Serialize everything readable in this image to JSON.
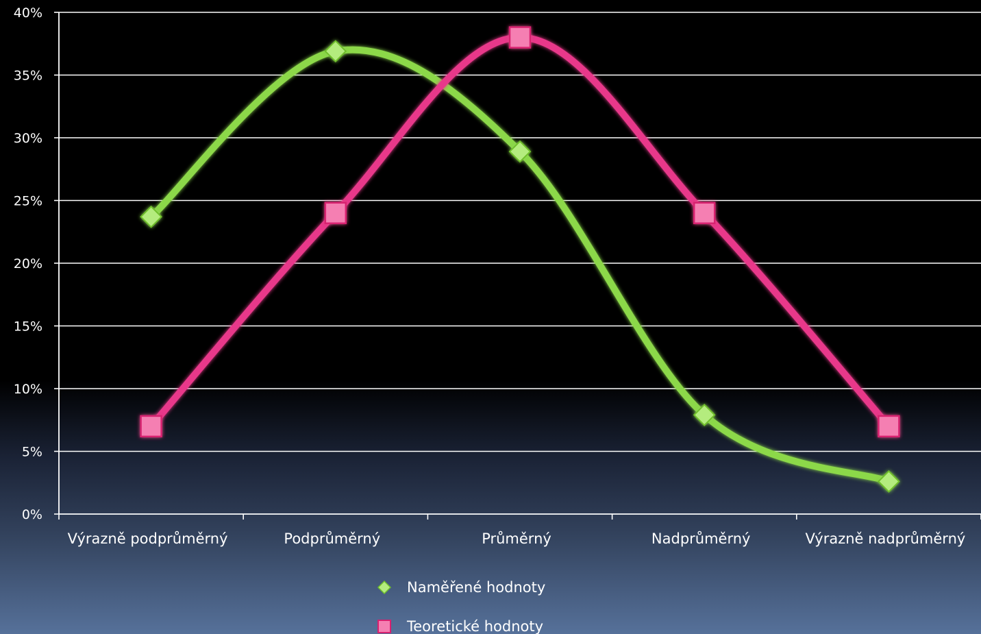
{
  "chart_data": {
    "type": "line",
    "smooth": true,
    "categories": [
      "Výrazně podprůměrný",
      "Podprůměrný",
      "Průměrný",
      "Nadprůměrný",
      "Výrazně nadprůměrný"
    ],
    "series": [
      {
        "name": "Naměřené hodnoty",
        "values": [
          23.7,
          36.9,
          28.9,
          7.9,
          2.6
        ],
        "color": "#8cd84a",
        "marker": "diamond"
      },
      {
        "name": "Teoretické hodnoty",
        "values": [
          7.0,
          24.0,
          38.0,
          24.0,
          7.0
        ],
        "color": "#e8388a",
        "marker": "square"
      }
    ],
    "y_ticks": [
      "0%",
      "5%",
      "10%",
      "15%",
      "20%",
      "25%",
      "30%",
      "35%",
      "40%"
    ],
    "ylim": [
      0,
      40
    ],
    "grid": true,
    "legend_position": "bottom-center",
    "title": "",
    "xlabel": "",
    "ylabel": ""
  }
}
